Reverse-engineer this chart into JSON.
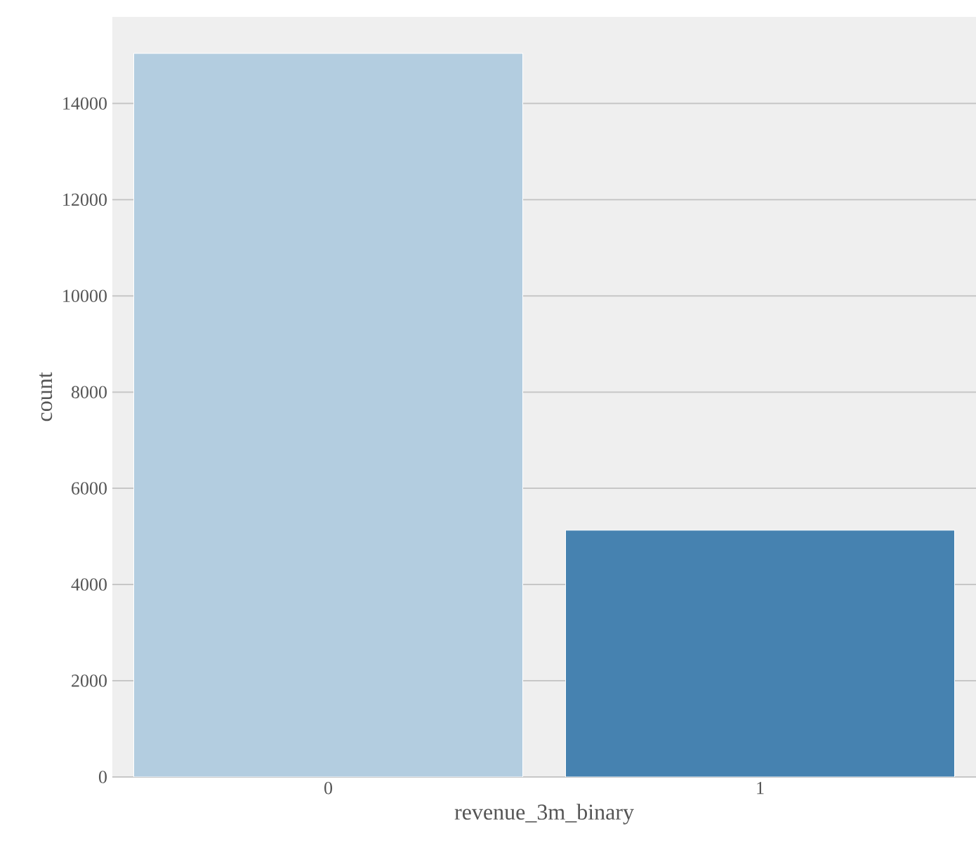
{
  "chart_data": {
    "type": "bar",
    "xlabel": "revenue_3m_binary",
    "ylabel": "count",
    "categories": [
      "0",
      "1"
    ],
    "values": [
      15040,
      5130
    ],
    "colors": [
      "#b3cde0",
      "#4682b0"
    ],
    "ylim": [
      0,
      15800
    ],
    "yticks": [
      0,
      2000,
      4000,
      6000,
      8000,
      10000,
      12000,
      14000
    ],
    "grid": "y"
  }
}
